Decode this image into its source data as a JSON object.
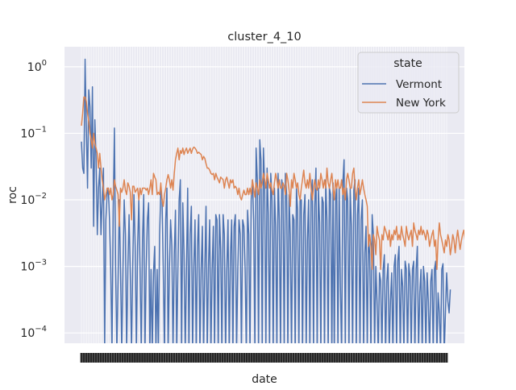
{
  "chart_data": {
    "type": "line",
    "title": "cluster_4_10",
    "xlabel": "date",
    "ylabel": "roc",
    "yscale": "log",
    "ylim": [
      7e-05,
      2.0
    ],
    "yticks": [
      {
        "value": 1,
        "base": "10",
        "exp": "0"
      },
      {
        "value": 0.1,
        "base": "10",
        "exp": "−1"
      },
      {
        "value": 0.01,
        "base": "10",
        "exp": "−2"
      },
      {
        "value": 0.001,
        "base": "10",
        "exp": "−3"
      },
      {
        "value": 0.0001,
        "base": "10",
        "exp": "−4"
      }
    ],
    "x_tick_labels_note": "x tick labels (dates) are densely overlapped and illegible in the original",
    "x_range": [
      0,
      299
    ],
    "grid": true,
    "style": "seaborn darkgrid",
    "legend": {
      "title": "state",
      "placement": "top-right"
    },
    "series": [
      {
        "name": "Vermont",
        "color": "#4c72b0",
        "values": [
          0.075,
          0.03,
          0.025,
          1.3,
          0.12,
          0.015,
          0.45,
          0.25,
          0.03,
          0.5,
          0.004,
          0.16,
          0.04,
          0.003,
          0.015,
          0.03,
          0.003,
          0.01,
          0.03,
          5e-05,
          0.005,
          0.012,
          0.015,
          0.005,
          0.0009,
          5e-05,
          0.007,
          0.12,
          0.0009,
          5e-05,
          0.0006,
          0.01,
          0.0009,
          5e-05,
          0.0009,
          0.01,
          0.003,
          5e-05,
          0.0009,
          0.006,
          0.0008,
          5e-05,
          0.001,
          0.012,
          0.002,
          5e-05,
          0.002,
          0.01,
          0.0009,
          5e-05,
          0.0025,
          0.012,
          5e-05,
          0.0009,
          0.005,
          0.009,
          5e-05,
          0.0009,
          5e-05,
          0.0008,
          0.002,
          5e-05,
          0.0009,
          5e-05,
          0.003,
          0.015,
          0.01,
          0.0009,
          5e-05,
          0.005,
          0.015,
          5e-05,
          0.0009,
          0.005,
          0.002,
          5e-05,
          0.0015,
          0.007,
          5e-05,
          0.0009,
          0.01,
          0.02,
          5e-05,
          0.009,
          0.0015,
          5e-05,
          0.001,
          0.015,
          5e-05,
          0.003,
          0.008,
          5e-05,
          0.001,
          0.005,
          5e-05,
          0.002,
          0.006,
          5e-05,
          0.0009,
          0.004,
          5e-05,
          0.0009,
          0.008,
          5e-05,
          0.001,
          0.005,
          5e-05,
          0.0009,
          0.004,
          5e-05,
          0.006,
          0.005,
          5e-05,
          0.006,
          0.0018,
          5e-05,
          0.006,
          0.003,
          5e-05,
          0.0009,
          0.005,
          5e-05,
          0.0015,
          0.005,
          5e-05,
          0.004,
          0.006,
          5e-05,
          0.0009,
          0.005,
          0.003,
          5e-05,
          0.005,
          0.004,
          0.0009,
          5e-05,
          0.007,
          0.003,
          5e-05,
          0.01,
          0.02,
          0.005,
          5e-05,
          0.06,
          0.02,
          5e-05,
          0.08,
          0.04,
          5e-05,
          0.06,
          0.015,
          5e-05,
          0.03,
          0.006,
          5e-05,
          0.025,
          0.01,
          5e-05,
          0.015,
          0.004,
          5e-05,
          0.025,
          0.005,
          5e-05,
          0.02,
          0.015,
          5e-05,
          0.025,
          0.012,
          5e-05,
          0.012,
          0.003,
          5e-05,
          0.006,
          0.005,
          5e-05,
          0.015,
          0.007,
          5e-05,
          0.01,
          0.01,
          5e-05,
          0.006,
          0.012,
          5e-05,
          0.0025,
          0.01,
          5e-05,
          0.012,
          0.02,
          5e-05,
          0.008,
          0.03,
          5e-05,
          0.015,
          0.0045,
          5e-05,
          0.011,
          0.009,
          5e-05,
          0.02,
          0.005,
          5e-05,
          0.015,
          0.012,
          5e-05,
          0.018,
          5e-05,
          0.01,
          0.015,
          5e-05,
          0.015,
          0.0005,
          5e-05,
          0.018,
          0.04,
          5e-05,
          0.015,
          0.01,
          5e-05,
          0.015,
          0.004,
          5e-05,
          0.014,
          0.02,
          5e-05,
          0.006,
          0.015,
          5e-05,
          0.005,
          0.01,
          5e-05,
          0.0016,
          0.004,
          5e-05,
          0.003,
          0.0015,
          5e-05,
          0.006,
          0.003,
          5e-05,
          0.001,
          0.0003,
          5e-05,
          0.0008,
          0.0006,
          5e-05,
          0.0009,
          0.0015,
          5e-05,
          0.0006,
          0.0011,
          5e-05,
          0.0003,
          0.0008,
          5e-05,
          0.001,
          0.0015,
          5e-05,
          0.0012,
          0.002,
          5e-05,
          0.0009,
          0.0005,
          5e-05,
          0.0012,
          0.0009,
          5e-05,
          0.0011,
          0.0007,
          5e-05,
          0.0009,
          0.0012,
          5e-05,
          0.0009,
          0.002,
          5e-05,
          0.0004,
          0.0009,
          5e-05,
          0.001,
          0.0006,
          5e-05,
          0.0008,
          0.0003,
          5e-05,
          0.0006,
          0.0009,
          5e-05,
          0.0009,
          0.0012,
          5e-05,
          0.0004,
          0.0002,
          5e-05,
          0.0009,
          0.0011,
          5e-05,
          0.0002,
          0.0008,
          0.0003,
          0.0002,
          0.00045
        ]
      },
      {
        "name": "New York",
        "color": "#dd8452",
        "values": [
          0.13,
          0.2,
          0.35,
          0.35,
          0.3,
          0.2,
          0.15,
          0.1,
          0.08,
          0.06,
          0.1,
          0.07,
          0.06,
          0.05,
          0.03,
          0.05,
          0.03,
          0.02,
          0.015,
          0.01,
          0.012,
          0.015,
          0.015,
          0.012,
          0.015,
          0.01,
          0.012,
          0.02,
          0.016,
          0.014,
          0.012,
          0.004,
          0.015,
          0.013,
          0.015,
          0.02,
          0.014,
          0.012,
          0.018,
          0.016,
          0.013,
          0.005,
          0.016,
          0.016,
          0.013,
          0.014,
          0.015,
          0.01,
          0.015,
          0.012,
          0.015,
          0.015,
          0.015,
          0.014,
          0.015,
          0.012,
          0.015,
          0.02,
          0.012,
          0.025,
          0.022,
          0.02,
          0.012,
          0.013,
          0.012,
          0.018,
          0.01,
          0.008,
          0.012,
          0.015,
          0.02,
          0.024,
          0.02,
          0.015,
          0.02,
          0.014,
          0.025,
          0.04,
          0.05,
          0.06,
          0.04,
          0.055,
          0.05,
          0.06,
          0.048,
          0.055,
          0.06,
          0.05,
          0.055,
          0.06,
          0.05,
          0.058,
          0.062,
          0.06,
          0.056,
          0.05,
          0.052,
          0.05,
          0.048,
          0.04,
          0.045,
          0.042,
          0.035,
          0.03,
          0.03,
          0.028,
          0.025,
          0.024,
          0.025,
          0.02,
          0.025,
          0.022,
          0.02,
          0.018,
          0.022,
          0.021,
          0.02,
          0.015,
          0.02,
          0.022,
          0.018,
          0.015,
          0.02,
          0.018,
          0.02,
          0.015,
          0.016,
          0.015,
          0.012,
          0.015,
          0.011,
          0.01,
          0.012,
          0.014,
          0.012,
          0.012,
          0.015,
          0.012,
          0.015,
          0.012,
          0.02,
          0.015,
          0.011,
          0.018,
          0.015,
          0.012,
          0.02,
          0.015,
          0.018,
          0.025,
          0.02,
          0.015,
          0.025,
          0.02,
          0.015,
          0.018,
          0.014,
          0.012,
          0.018,
          0.025,
          0.02,
          0.015,
          0.02,
          0.015,
          0.015,
          0.018,
          0.016,
          0.012,
          0.025,
          0.02,
          0.014,
          0.008,
          0.02,
          0.015,
          0.025,
          0.02,
          0.015,
          0.018,
          0.012,
          0.01,
          0.015,
          0.02,
          0.028,
          0.018,
          0.015,
          0.02,
          0.015,
          0.025,
          0.015,
          0.01,
          0.015,
          0.02,
          0.015,
          0.014,
          0.02,
          0.015,
          0.025,
          0.02,
          0.015,
          0.02,
          0.015,
          0.03,
          0.018,
          0.015,
          0.02,
          0.025,
          0.015,
          0.01,
          0.02,
          0.015,
          0.02,
          0.015,
          0.015,
          0.02,
          0.012,
          0.015,
          0.01,
          0.02,
          0.025,
          0.02,
          0.015,
          0.015,
          0.025,
          0.03,
          0.015,
          0.01,
          0.015,
          0.02,
          0.012,
          0.015,
          0.02,
          0.015,
          0.012,
          0.01,
          0.008,
          0.002,
          0.003,
          0.002,
          0.0009,
          0.003,
          0.0025,
          0.0015,
          0.004,
          0.003,
          0.0025,
          0.0009,
          0.003,
          0.0025,
          0.004,
          0.0035,
          0.003,
          0.0025,
          0.0035,
          0.002,
          0.003,
          0.0025,
          0.0035,
          0.003,
          0.004,
          0.0025,
          0.003,
          0.0025,
          0.004,
          0.003,
          0.0025,
          0.002,
          0.004,
          0.003,
          0.0025,
          0.003,
          0.0035,
          0.002,
          0.0045,
          0.0035,
          0.003,
          0.0025,
          0.0035,
          0.003,
          0.004,
          0.003,
          0.0035,
          0.003,
          0.0025,
          0.0035,
          0.003,
          0.002,
          0.0025,
          0.003,
          0.0035,
          0.002,
          0.0025,
          0.0009,
          0.0025,
          0.0045,
          0.003,
          0.0025,
          0.002,
          0.0016,
          0.0025,
          0.002,
          0.003,
          0.0025,
          0.0015,
          0.002,
          0.003,
          0.0025,
          0.0016,
          0.0025,
          0.0035,
          0.0025,
          0.0018,
          0.0024,
          0.003,
          0.0035,
          0.0025,
          0.0045,
          0.002,
          0.0015,
          0.001,
          0.0024,
          0.0005,
          0.0009,
          0.0008,
          0.0028,
          0.0012,
          0.0009,
          0.0002
        ]
      }
    ]
  }
}
